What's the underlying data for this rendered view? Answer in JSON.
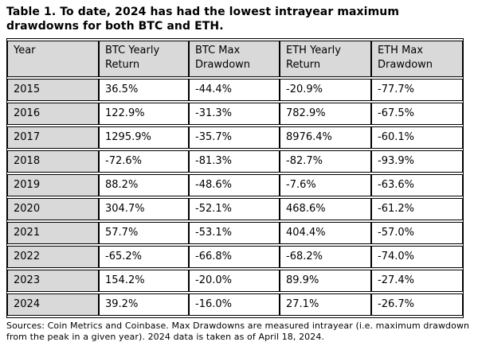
{
  "title": "Table 1. To date, 2024 has had the lowest intrayear maximum drawdowns for both BTC and ETH.",
  "table": {
    "columns": [
      "Year",
      "BTC Yearly Return",
      "BTC Max Drawdown",
      "ETH Yearly Return",
      "ETH Max Drawdown"
    ],
    "rows": [
      [
        "2015",
        "36.5%",
        "-44.4%",
        "-20.9%",
        "-77.7%"
      ],
      [
        "2016",
        "122.9%",
        "-31.3%",
        "782.9%",
        "-67.5%"
      ],
      [
        "2017",
        "1295.9%",
        "-35.7%",
        "8976.4%",
        "-60.1%"
      ],
      [
        "2018",
        "-72.6%",
        "-81.3%",
        "-82.7%",
        "-93.9%"
      ],
      [
        "2019",
        "88.2%",
        "-48.6%",
        "-7.6%",
        "-63.6%"
      ],
      [
        "2020",
        "304.7%",
        "-52.1%",
        "468.6%",
        "-61.2%"
      ],
      [
        "2021",
        "57.7%",
        "-53.1%",
        "404.4%",
        "-57.0%"
      ],
      [
        "2022",
        "-65.2%",
        "-66.8%",
        "-68.2%",
        "-74.0%"
      ],
      [
        "2023",
        "154.2%",
        "-20.0%",
        "89.9%",
        "-27.4%"
      ],
      [
        "2024",
        "39.2%",
        "-16.0%",
        "27.1%",
        "-26.7%"
      ]
    ]
  },
  "footnote": "Sources: Coin Metrics and Coinbase. Max Drawdowns are measured intrayear (i.e. maximum drawdown from the peak in a given year). 2024 data is taken as of April 18, 2024.",
  "colors": {
    "header_bg": "#d9d9d9",
    "border": "#000000",
    "text": "#000000",
    "background": "#ffffff"
  }
}
